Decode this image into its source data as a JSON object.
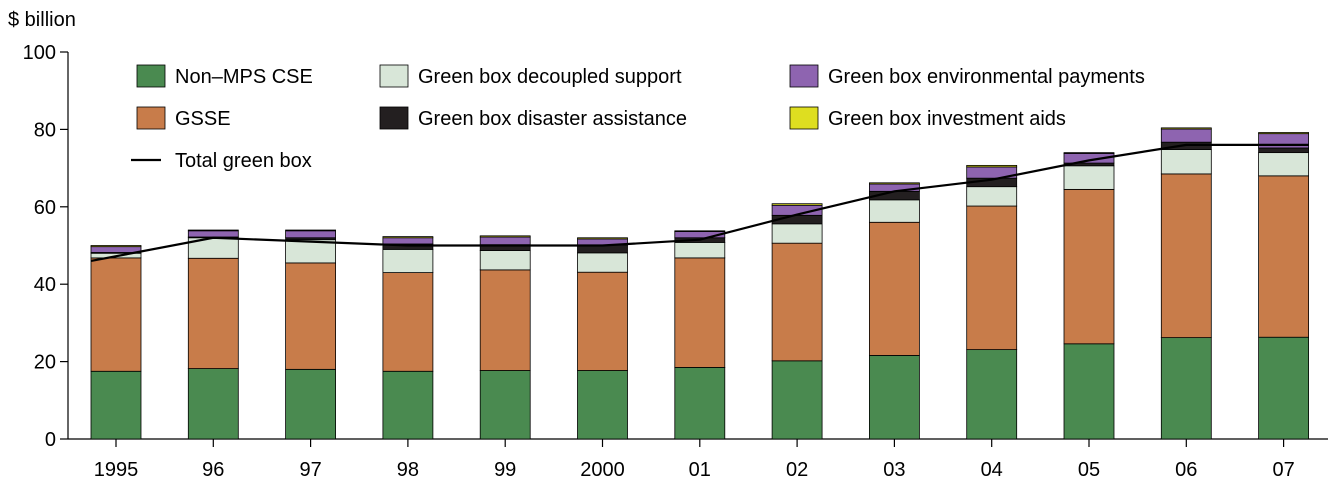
{
  "chart_data": {
    "type": "bar",
    "stacked": true,
    "ylabel": "$ billion",
    "ylim": [
      0,
      100
    ],
    "yticks": [
      0,
      20,
      40,
      60,
      80,
      100
    ],
    "ytick_labels": [
      "0",
      "20",
      "40",
      "60",
      "80",
      "100"
    ],
    "categories": [
      "1995",
      "96",
      "97",
      "98",
      "99",
      "2000",
      "01",
      "02",
      "03",
      "04",
      "05",
      "06",
      "07"
    ],
    "series": [
      {
        "name": "Non–MPS CSE",
        "color": "#4a8a50",
        "values": [
          17.5,
          18.2,
          18.0,
          17.5,
          17.7,
          17.7,
          18.5,
          20.2,
          21.6,
          23.1,
          24.6,
          26.2,
          26.3
        ]
      },
      {
        "name": "GSSE",
        "color": "#c87c4a",
        "values": [
          29.3,
          28.5,
          27.5,
          25.5,
          26.0,
          25.4,
          28.3,
          30.4,
          34.4,
          37.1,
          39.9,
          42.3,
          41.7
        ]
      },
      {
        "name": "Green box decoupled support",
        "color": "#d8e6d8",
        "values": [
          1.2,
          5.3,
          6.0,
          6.0,
          5.0,
          5.0,
          4.0,
          5.0,
          5.8,
          5.0,
          6.1,
          6.3,
          6.0
        ]
      },
      {
        "name": "Green box disaster assistance",
        "color": "#231f20",
        "values": [
          0.2,
          0.2,
          0.5,
          1.4,
          1.5,
          2.0,
          1.2,
          2.2,
          2.2,
          2.2,
          0.7,
          1.9,
          1.2
        ]
      },
      {
        "name": "Green box environmental payments",
        "color": "#8e64b0",
        "values": [
          1.5,
          1.6,
          1.8,
          1.6,
          2.0,
          1.6,
          1.6,
          2.6,
          1.9,
          2.9,
          2.5,
          3.4,
          3.7
        ]
      },
      {
        "name": "Green box investment aids",
        "color": "#dede20",
        "values": [
          0.3,
          0.2,
          0.2,
          0.3,
          0.3,
          0.3,
          0.2,
          0.4,
          0.3,
          0.4,
          0.2,
          0.3,
          0.3
        ]
      }
    ],
    "line_series": {
      "name": "Total green box",
      "color": "#000000",
      "values": [
        46,
        52,
        51,
        50,
        50,
        50,
        51.5,
        58,
        64,
        67,
        72,
        76,
        76
      ]
    },
    "legend_placement": "top",
    "grid": false
  }
}
